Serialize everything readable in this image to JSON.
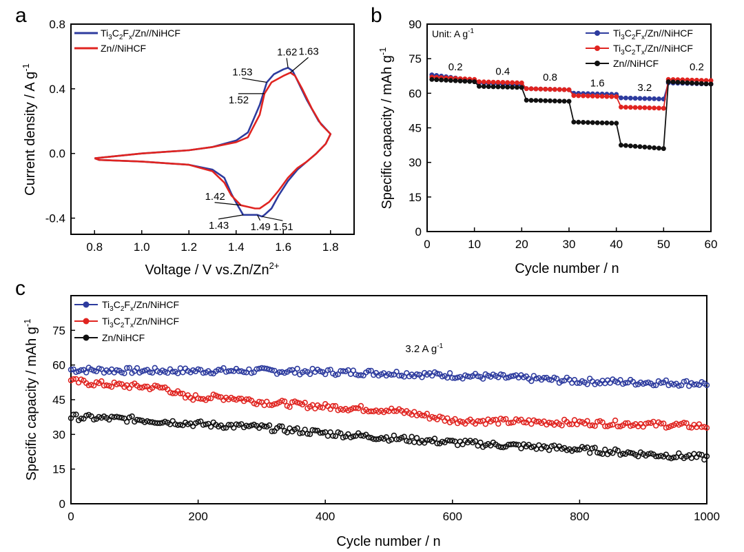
{
  "figure": {
    "colors": {
      "blue": "#2d3b9e",
      "red": "#e02420",
      "black": "#111111"
    }
  },
  "chart_data": [
    {
      "panel": "a",
      "type": "line",
      "xlabel": "Voltage / V vs.Zn/Zn",
      "xlabel_sup": "2+",
      "ylabel": "Current density / A g",
      "ylabel_sup": "-1",
      "xlim": [
        0.7,
        1.9
      ],
      "ylim": [
        -0.5,
        0.8
      ],
      "xticks": [
        0.8,
        1.0,
        1.2,
        1.4,
        1.6,
        1.8
      ],
      "xtick_labels": [
        "0.8",
        "1.0",
        "1.2",
        "1.4",
        "1.6",
        "1.8"
      ],
      "yticks": [
        -0.4,
        0.0,
        0.4,
        0.8
      ],
      "ytick_labels": [
        "-0.4",
        "0.0",
        "0.4",
        "0.8"
      ],
      "legend_position": "top-left",
      "series": [
        {
          "name": "Ti3C2Fx/Zn//NiHCF",
          "label_parts": [
            [
              "Ti",
              ""
            ],
            [
              "3",
              "sub"
            ],
            [
              "C",
              ""
            ],
            [
              "2",
              "sub"
            ],
            [
              "F",
              ""
            ],
            [
              "x",
              "sub"
            ],
            [
              "/Zn//NiHCF",
              ""
            ]
          ],
          "color": "#2d3b9e",
          "x": [
            0.8,
            1.0,
            1.2,
            1.3,
            1.4,
            1.45,
            1.5,
            1.53,
            1.56,
            1.6,
            1.62,
            1.64,
            1.66,
            1.7,
            1.75,
            1.8,
            1.78,
            1.74,
            1.7,
            1.66,
            1.62,
            1.58,
            1.55,
            1.52,
            1.51,
            1.49,
            1.46,
            1.43,
            1.41,
            1.38,
            1.35,
            1.3,
            1.2,
            1.0,
            0.82,
            0.8
          ],
          "y": [
            -0.03,
            0.0,
            0.02,
            0.04,
            0.08,
            0.13,
            0.3,
            0.44,
            0.49,
            0.52,
            0.53,
            0.51,
            0.45,
            0.33,
            0.2,
            0.12,
            0.06,
            0.0,
            -0.05,
            -0.1,
            -0.17,
            -0.26,
            -0.34,
            -0.38,
            -0.39,
            -0.38,
            -0.38,
            -0.38,
            -0.33,
            -0.25,
            -0.15,
            -0.1,
            -0.07,
            -0.05,
            -0.04,
            -0.03
          ]
        },
        {
          "name": "Zn//NiHCF",
          "label_parts": [
            [
              "Zn//NiHCF",
              ""
            ]
          ],
          "color": "#e02420",
          "x": [
            0.8,
            1.0,
            1.2,
            1.3,
            1.4,
            1.45,
            1.5,
            1.52,
            1.55,
            1.6,
            1.63,
            1.65,
            1.68,
            1.72,
            1.76,
            1.8,
            1.78,
            1.74,
            1.7,
            1.66,
            1.62,
            1.58,
            1.54,
            1.5,
            1.48,
            1.45,
            1.42,
            1.38,
            1.35,
            1.3,
            1.2,
            1.0,
            0.82,
            0.8
          ],
          "y": [
            -0.03,
            0.0,
            0.02,
            0.04,
            0.07,
            0.1,
            0.24,
            0.37,
            0.44,
            0.48,
            0.5,
            0.48,
            0.4,
            0.28,
            0.18,
            0.12,
            0.06,
            0.0,
            -0.05,
            -0.09,
            -0.15,
            -0.23,
            -0.3,
            -0.34,
            -0.34,
            -0.33,
            -0.32,
            -0.26,
            -0.18,
            -0.11,
            -0.07,
            -0.05,
            -0.04,
            -0.03
          ]
        }
      ],
      "annotations": [
        {
          "text": "1.62",
          "x": 1.62,
          "y": 0.53
        },
        {
          "text": "1.63",
          "x": 1.63,
          "y": 0.5
        },
        {
          "text": "1.53",
          "x": 1.53,
          "y": 0.44
        },
        {
          "text": "1.52",
          "x": 1.52,
          "y": 0.37
        },
        {
          "text": "1.42",
          "x": 1.42,
          "y": -0.32
        },
        {
          "text": "1.43",
          "x": 1.43,
          "y": -0.38
        },
        {
          "text": "1.49",
          "x": 1.49,
          "y": -0.38
        },
        {
          "text": "1.51",
          "x": 1.51,
          "y": -0.39
        }
      ]
    },
    {
      "panel": "b",
      "type": "line",
      "xlabel": "Cycle number / n",
      "ylabel": "Specific capacity / mAh g",
      "ylabel_sup": "-1",
      "xlim": [
        0,
        60
      ],
      "ylim": [
        0,
        90
      ],
      "xticks": [
        0,
        10,
        20,
        30,
        40,
        50,
        60
      ],
      "xtick_labels": [
        "0",
        "10",
        "20",
        "30",
        "40",
        "50",
        "60"
      ],
      "yticks": [
        0,
        15,
        30,
        45,
        60,
        75,
        90
      ],
      "ytick_labels": [
        "0",
        "15",
        "30",
        "45",
        "60",
        "75",
        "90"
      ],
      "legend_position": "top-right",
      "unit_label": "Unit: A g",
      "unit_label_sup": "-1",
      "rate_labels": [
        {
          "text": "0.2",
          "x": 6,
          "y": 70
        },
        {
          "text": "0.4",
          "x": 16,
          "y": 68
        },
        {
          "text": "0.8",
          "x": 26,
          "y": 65.5
        },
        {
          "text": "1.6",
          "x": 36,
          "y": 63
        },
        {
          "text": "3.2",
          "x": 46,
          "y": 61
        },
        {
          "text": "0.2",
          "x": 57,
          "y": 70
        }
      ],
      "rate_stages": [
        {
          "rate": "0.2",
          "cycles": [
            1,
            10
          ]
        },
        {
          "rate": "0.4",
          "cycles": [
            11,
            20
          ]
        },
        {
          "rate": "0.8",
          "cycles": [
            21,
            30
          ]
        },
        {
          "rate": "1.6",
          "cycles": [
            31,
            40
          ]
        },
        {
          "rate": "3.2",
          "cycles": [
            41,
            50
          ]
        },
        {
          "rate": "0.2",
          "cycles": [
            51,
            60
          ]
        }
      ],
      "series": [
        {
          "name": "Ti3C2Fx/Zn//NiHCF",
          "label_parts": [
            [
              "Ti",
              ""
            ],
            [
              "3",
              "sub"
            ],
            [
              "C",
              ""
            ],
            [
              "2",
              "sub"
            ],
            [
              "F",
              ""
            ],
            [
              "x",
              "sub"
            ],
            [
              "/Zn//NiHCF",
              ""
            ]
          ],
          "color": "#2d3b9e",
          "stage_values": [
            [
              68,
              65.5
            ],
            [
              64.5,
              63.5
            ],
            [
              62,
              61.5
            ],
            [
              60,
              59.5
            ],
            [
              58,
              57.5
            ],
            [
              64.5,
              64
            ]
          ]
        },
        {
          "name": "Ti3C2Tx/Zn//NiHCF",
          "label_parts": [
            [
              "Ti",
              ""
            ],
            [
              "3",
              "sub"
            ],
            [
              "C",
              ""
            ],
            [
              "2",
              "sub"
            ],
            [
              "T",
              ""
            ],
            [
              "x",
              "sub"
            ],
            [
              "/Zn//NiHCF",
              ""
            ]
          ],
          "color": "#e02420",
          "stage_values": [
            [
              67,
              66
            ],
            [
              65,
              64.5
            ],
            [
              62,
              61.5
            ],
            [
              59,
              58.5
            ],
            [
              54,
              53.5
            ],
            [
              66,
              65.5
            ]
          ]
        },
        {
          "name": "Zn//NiHCF",
          "label_parts": [
            [
              "Zn//NiHCF",
              ""
            ]
          ],
          "color": "#111111",
          "stage_values": [
            [
              66,
              65
            ],
            [
              63,
              62.5
            ],
            [
              57,
              56.5
            ],
            [
              47.5,
              47
            ],
            [
              37.5,
              36
            ],
            [
              65,
              64
            ]
          ]
        }
      ]
    },
    {
      "panel": "c",
      "type": "scatter",
      "xlabel": "Cycle number / n",
      "ylabel": "Specific capacity / mAh g",
      "ylabel_sup": "-1",
      "xlim": [
        0,
        1000
      ],
      "ylim": [
        0,
        90
      ],
      "xticks": [
        0,
        200,
        400,
        600,
        800,
        1000
      ],
      "xtick_labels": [
        "0",
        "200",
        "400",
        "600",
        "800",
        "1000"
      ],
      "yticks": [
        0,
        15,
        30,
        45,
        60,
        75
      ],
      "ytick_labels": [
        "0",
        "15",
        "30",
        "45",
        "60",
        "75"
      ],
      "legend_position": "top-left",
      "annotation": {
        "text": "3.2 A g",
        "sup": "-1",
        "x": 450,
        "y": 65
      },
      "series": [
        {
          "name": "Ti3C2Fx/Zn/NiHCF",
          "label_parts": [
            [
              "Ti",
              ""
            ],
            [
              "3",
              "sub"
            ],
            [
              "C",
              ""
            ],
            [
              "2",
              "sub"
            ],
            [
              "F",
              ""
            ],
            [
              "x",
              "sub"
            ],
            [
              "/Zn/NiHCF",
              ""
            ]
          ],
          "color": "#2d3b9e",
          "x": [
            0,
            100,
            200,
            300,
            400,
            500,
            600,
            700,
            800,
            900,
            1000
          ],
          "y": [
            58,
            57.5,
            57.5,
            57.5,
            57,
            56.5,
            55.5,
            54.5,
            53,
            52.5,
            52
          ]
        },
        {
          "name": "Ti3C2Tx/Zn/NiHCF",
          "label_parts": [
            [
              "Ti",
              ""
            ],
            [
              "3",
              "sub"
            ],
            [
              "C",
              ""
            ],
            [
              "2",
              "sub"
            ],
            [
              "T",
              ""
            ],
            [
              "x",
              "sub"
            ],
            [
              "/Zn/NiHCF",
              ""
            ]
          ],
          "color": "#e02420",
          "x": [
            0,
            60,
            150,
            180,
            250,
            300,
            400,
            500,
            540,
            600,
            700,
            800,
            900,
            1000
          ],
          "y": [
            53,
            51.5,
            50,
            46,
            46,
            44,
            42,
            40.5,
            39,
            36,
            35.5,
            35,
            34.5,
            33.5
          ]
        },
        {
          "name": "Zn/NiHCF",
          "label_parts": [
            [
              "Zn/NiHCF",
              ""
            ]
          ],
          "color": "#111111",
          "x": [
            0,
            100,
            200,
            300,
            400,
            500,
            600,
            700,
            800,
            900,
            1000
          ],
          "y": [
            37.5,
            36.5,
            34.5,
            33,
            30.5,
            28.5,
            26.5,
            25,
            23.5,
            21.5,
            20
          ]
        }
      ]
    }
  ]
}
